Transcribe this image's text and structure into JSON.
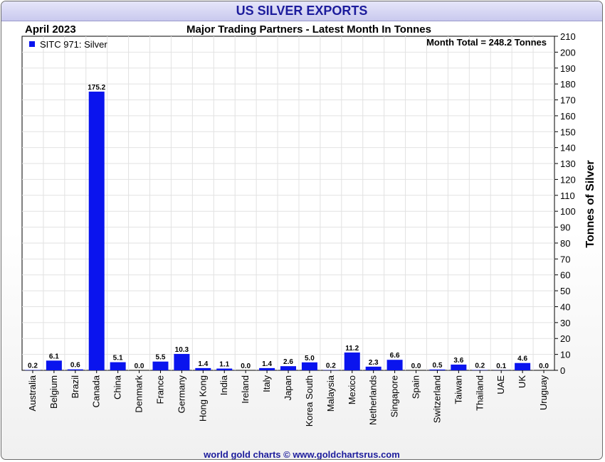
{
  "header": {
    "title": "US SILVER EXPORTS",
    "period": "April 2023",
    "subtitle": "Major Trading Partners - Latest Month In Tonnes",
    "month_total": "Month Total = 248.2 Tonnes"
  },
  "footer": {
    "credit": "world gold charts © www.goldchartsrus.com"
  },
  "colors": {
    "bar": "#0a14ee",
    "title": "#1c1c9c"
  },
  "chart_data": {
    "type": "bar",
    "title": "US SILVER EXPORTS",
    "subtitle": "Major Trading Partners - Latest Month In Tonnes",
    "xlabel": "",
    "ylabel": "Tonnes of Silver",
    "ylim": [
      0,
      210
    ],
    "yticks": [
      0,
      10,
      20,
      30,
      40,
      50,
      60,
      70,
      80,
      90,
      100,
      110,
      120,
      130,
      140,
      150,
      160,
      170,
      180,
      190,
      200,
      210
    ],
    "y_axis_side": "right",
    "grid": true,
    "legend": {
      "placement": "top-left",
      "entries": [
        "SITC 971: Silver"
      ]
    },
    "categories": [
      "Australia",
      "Belgium",
      "Brazil",
      "Canada",
      "China",
      "Denmark",
      "France",
      "Germany",
      "Hong Kong",
      "India",
      "Ireland",
      "Italy",
      "Japan",
      "Korea South",
      "Malaysia",
      "Mexico",
      "Netherlands",
      "Singapore",
      "Spain",
      "Switzerland",
      "Taiwan",
      "Thailand",
      "UAE",
      "UK",
      "Uruguay"
    ],
    "series": [
      {
        "name": "SITC 971: Silver",
        "values": [
          0.2,
          6.1,
          0.6,
          175.2,
          5.1,
          0.0,
          5.5,
          10.3,
          1.4,
          1.1,
          0.0,
          1.4,
          2.6,
          5.0,
          0.2,
          11.2,
          2.3,
          6.6,
          0.0,
          0.5,
          3.6,
          0.2,
          0.1,
          4.6,
          0.0
        ],
        "labels": [
          "0.2",
          "6.1",
          "0.6",
          "175.2",
          "5.1",
          "0.0",
          "5.5",
          "10.3",
          "1.4",
          "1.1",
          "0.0",
          "1.4",
          "2.6",
          "5.0",
          "0.2",
          "11.2",
          "2.3",
          "6.6",
          "0.0",
          "0.5",
          "3.6",
          "0.2",
          "0.1",
          "4.6",
          "0.0"
        ]
      }
    ]
  }
}
